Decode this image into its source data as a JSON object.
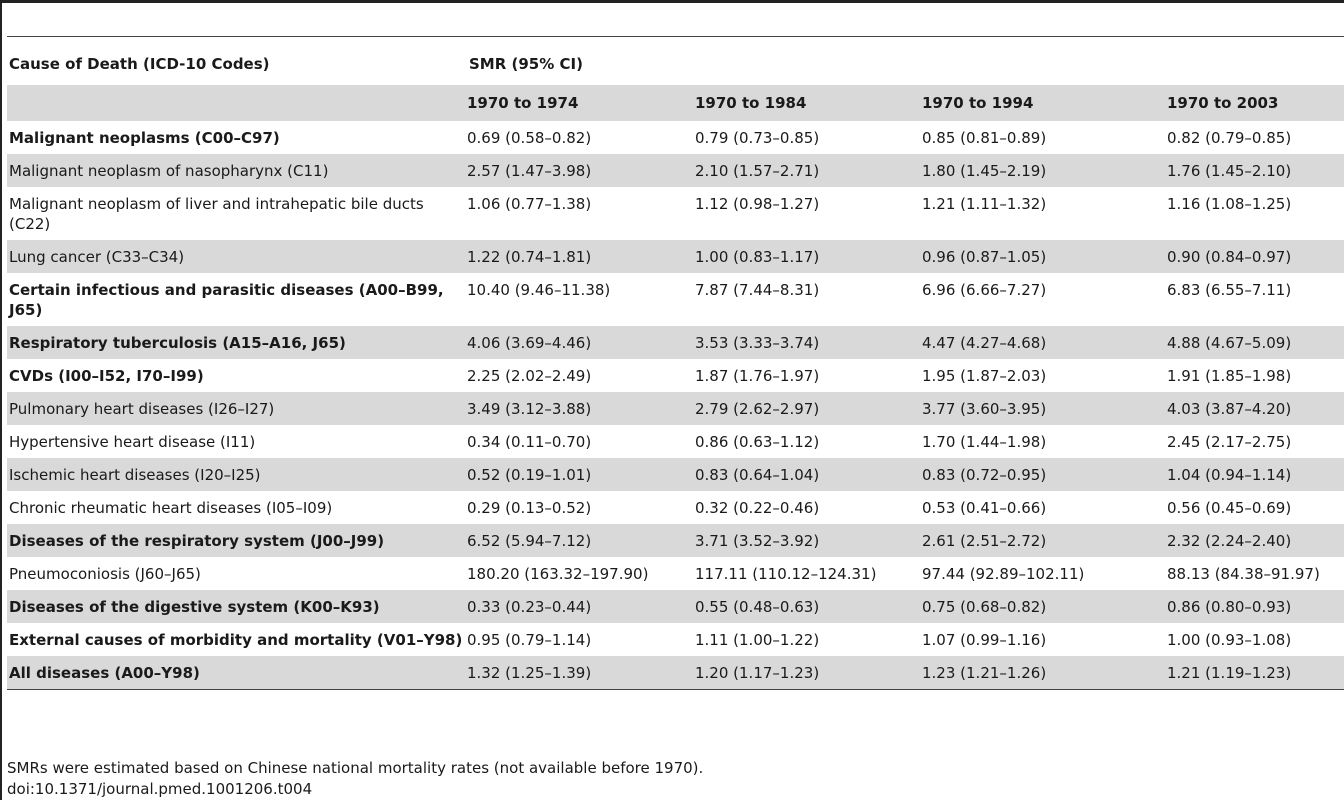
{
  "table": {
    "header_col0": "Cause of Death (ICD-10 Codes)",
    "header_group": "SMR (95% CI)",
    "periods": [
      "1970 to 1974",
      "1970 to 1984",
      "1970 to 1994",
      "1970 to 2003"
    ],
    "rows": [
      {
        "cause": "Malignant neoplasms (C00–C97)",
        "bold": true,
        "v": [
          "0.69 (0.58–0.82)",
          "0.79 (0.73–0.85)",
          "0.85 (0.81–0.89)",
          "0.82 (0.79–0.85)"
        ]
      },
      {
        "cause": "Malignant neoplasm of nasopharynx (C11)",
        "bold": false,
        "v": [
          "2.57 (1.47–3.98)",
          "2.10 (1.57–2.71)",
          "1.80 (1.45–2.19)",
          "1.76 (1.45–2.10)"
        ]
      },
      {
        "cause": "Malignant neoplasm of liver and intrahepatic bile ducts (C22)",
        "bold": false,
        "v": [
          "1.06 (0.77–1.38)",
          "1.12 (0.98–1.27)",
          "1.21 (1.11–1.32)",
          "1.16 (1.08–1.25)"
        ]
      },
      {
        "cause": "Lung cancer (C33–C34)",
        "bold": false,
        "v": [
          "1.22 (0.74–1.81)",
          "1.00 (0.83–1.17)",
          "0.96 (0.87–1.05)",
          "0.90 (0.84–0.97)"
        ]
      },
      {
        "cause": "Certain infectious and parasitic diseases (A00–B99, J65)",
        "bold": true,
        "v": [
          "10.40 (9.46–11.38)",
          "7.87 (7.44–8.31)",
          "6.96 (6.66–7.27)",
          "6.83 (6.55–7.11)"
        ]
      },
      {
        "cause": "Respiratory tuberculosis (A15–A16, J65)",
        "bold": true,
        "v": [
          "4.06 (3.69–4.46)",
          "3.53 (3.33–3.74)",
          "4.47 (4.27–4.68)",
          "4.88 (4.67–5.09)"
        ]
      },
      {
        "cause": "CVDs (I00–I52, I70–I99)",
        "bold": true,
        "v": [
          "2.25 (2.02–2.49)",
          "1.87 (1.76–1.97)",
          "1.95 (1.87–2.03)",
          "1.91 (1.85–1.98)"
        ]
      },
      {
        "cause": "Pulmonary heart diseases (I26–I27)",
        "bold": false,
        "v": [
          "3.49 (3.12–3.88)",
          "2.79 (2.62–2.97)",
          "3.77 (3.60–3.95)",
          "4.03 (3.87–4.20)"
        ]
      },
      {
        "cause": "Hypertensive heart disease (I11)",
        "bold": false,
        "v": [
          "0.34 (0.11–0.70)",
          "0.86 (0.63–1.12)",
          "1.70 (1.44–1.98)",
          "2.45 (2.17–2.75)"
        ]
      },
      {
        "cause": "Ischemic heart diseases (I20–I25)",
        "bold": false,
        "v": [
          "0.52 (0.19–1.01)",
          "0.83 (0.64–1.04)",
          "0.83 (0.72–0.95)",
          "1.04 (0.94–1.14)"
        ]
      },
      {
        "cause": "Chronic rheumatic heart diseases (I05–I09)",
        "bold": false,
        "v": [
          "0.29 (0.13–0.52)",
          "0.32 (0.22–0.46)",
          "0.53 (0.41–0.66)",
          "0.56 (0.45–0.69)"
        ]
      },
      {
        "cause": "Diseases of the respiratory system (J00–J99)",
        "bold": true,
        "v": [
          "6.52 (5.94–7.12)",
          "3.71 (3.52–3.92)",
          "2.61 (2.51–2.72)",
          "2.32 (2.24–2.40)"
        ]
      },
      {
        "cause": "Pneumoconiosis (J60–J65)",
        "bold": false,
        "v": [
          "180.20 (163.32–197.90)",
          "117.11 (110.12–124.31)",
          "97.44 (92.89–102.11)",
          "88.13 (84.38–91.97)"
        ]
      },
      {
        "cause": "Diseases of the digestive system (K00–K93)",
        "bold": true,
        "v": [
          "0.33 (0.23–0.44)",
          "0.55 (0.48–0.63)",
          "0.75 (0.68–0.82)",
          "0.86 (0.80–0.93)"
        ]
      },
      {
        "cause": "External causes of morbidity and mortality (V01–Y98)",
        "bold": true,
        "v": [
          "0.95 (0.79–1.14)",
          "1.11 (1.00–1.22)",
          "1.07 (0.99–1.16)",
          "1.00 (0.93–1.08)"
        ]
      },
      {
        "cause": "All diseases (A00–Y98)",
        "bold": true,
        "v": [
          "1.32 (1.25–1.39)",
          "1.20 (1.17–1.23)",
          "1.23 (1.21–1.26)",
          "1.21 (1.19–1.23)"
        ]
      }
    ]
  },
  "footnote": "SMRs were estimated based on Chinese national mortality rates (not available before 1970).",
  "doi": "doi:10.1371/journal.pmed.1001206.t004"
}
